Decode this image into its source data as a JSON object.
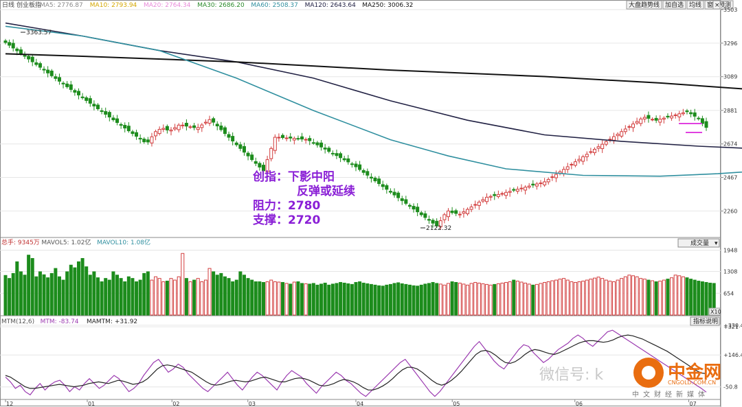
{
  "header": {
    "period": "日线",
    "index_name": "创业板指",
    "ma_labels": [
      {
        "text": "MA5: 2776.87",
        "color": "#888888"
      },
      {
        "text": "MA10: 2793.94",
        "color": "#d4a700"
      },
      {
        "text": "MA20: 2764.34",
        "color": "#e88ad8"
      },
      {
        "text": "MA30: 2686.20",
        "color": "#2a8a2a"
      },
      {
        "text": "MA60: 2508.37",
        "color": "#2f8f9f"
      },
      {
        "text": "MA120: 2643.64",
        "color": "#222244"
      },
      {
        "text": "MA250: 3006.32",
        "color": "#111111"
      }
    ]
  },
  "toolbar": {
    "buttons": [
      "大盘趋势线",
      "加自选",
      "均线",
      "窗",
      "预测"
    ]
  },
  "price_axis": {
    "ticks": [
      "3503",
      "3296",
      "3089",
      "2881",
      "2674",
      "2467",
      "2260"
    ]
  },
  "annotations": {
    "high": "3363.57",
    "low": "2122.32"
  },
  "overlay_text": {
    "line1": "创指：下影中阳",
    "line2": "反弹或延续",
    "line3": "阻力：2780",
    "line4": "支撑：2720"
  },
  "volume_panel": {
    "labels": [
      {
        "text": "总手: 9345万",
        "color": "#c03030"
      },
      {
        "text": "MAVOL5: 1.02亿",
        "color": "#555555"
      },
      {
        "text": "MAVOL10: 1.08亿",
        "color": "#2f8f9f"
      }
    ],
    "dropdown": "成交量",
    "ticks": [
      "1948",
      "1308",
      "654"
    ],
    "unit": "X10"
  },
  "mtm_panel": {
    "labels": [
      {
        "text": "MTM(12,6)",
        "color": "#555555"
      },
      {
        "text": "MTM: -83.74",
        "color": "#9b3ab0"
      },
      {
        "text": "MAMTM: +31.92",
        "color": "#222222"
      }
    ],
    "button": "指标说明",
    "ticks": [
      "+330.4",
      "+146.4",
      "+321",
      "-50.8"
    ]
  },
  "date_axis": {
    "ticks": [
      "12",
      "01",
      "02",
      "03",
      "04",
      "05",
      "06",
      "07"
    ]
  },
  "watermark": {
    "text": "微信号: k",
    "logo_text": "中金网",
    "logo_sub": "CNGOLD.COM.CN",
    "tagline": "中文财经新媒体",
    "tag": "CN"
  },
  "chart_data": [
    {
      "type": "candlestick",
      "title": "创业板指 日线",
      "ylim": [
        2122,
        3503
      ],
      "close": [
        3300,
        3283,
        3266,
        3249,
        3232,
        3215,
        3198,
        3181,
        3164,
        3147,
        3130,
        3112,
        3095,
        3078,
        3061,
        3044,
        3027,
        3010,
        2993,
        2976,
        2959,
        2942,
        2925,
        2908,
        2891,
        2874,
        2857,
        2840,
        2823,
        2806,
        2789,
        2772,
        2755,
        2738,
        2721,
        2704,
        2687,
        2686,
        2718,
        2750,
        2764,
        2770,
        2760,
        2760,
        2774,
        2790,
        2790,
        2784,
        2780,
        2775,
        2775,
        2791,
        2808,
        2824,
        2808,
        2785,
        2762,
        2738,
        2715,
        2692,
        2669,
        2646,
        2623,
        2600,
        2577,
        2554,
        2531,
        2508,
        2577,
        2646,
        2715,
        2715,
        2713,
        2711,
        2710,
        2708,
        2706,
        2704,
        2702,
        2694,
        2681,
        2668,
        2655,
        2642,
        2628,
        2615,
        2602,
        2589,
        2576,
        2563,
        2550,
        2533,
        2516,
        2498,
        2481,
        2463,
        2446,
        2429,
        2411,
        2394,
        2376,
        2359,
        2342,
        2324,
        2307,
        2289,
        2272,
        2255,
        2237,
        2220,
        2203,
        2185,
        2168,
        2200,
        2237,
        2260,
        2250,
        2245,
        2240,
        2255,
        2270,
        2285,
        2300,
        2315,
        2330,
        2345,
        2350,
        2355,
        2362,
        2368,
        2375,
        2381,
        2388,
        2394,
        2401,
        2407,
        2414,
        2420,
        2427,
        2433,
        2440,
        2455,
        2471,
        2486,
        2502,
        2517,
        2533,
        2548,
        2564,
        2579,
        2595,
        2610,
        2626,
        2641,
        2657,
        2672,
        2688,
        2703,
        2719,
        2734,
        2750,
        2766,
        2781,
        2797,
        2812,
        2828,
        2838,
        2832,
        2826,
        2820,
        2827,
        2833,
        2840,
        2846,
        2853,
        2860,
        2866,
        2873,
        2860,
        2845,
        2830,
        2800,
        2776
      ]
    },
    {
      "type": "line",
      "series": [
        {
          "name": "MA120",
          "color": "#222244",
          "x": [
            0,
            10,
            20,
            40,
            60,
            80,
            100,
            120,
            140,
            160,
            180,
            196
          ],
          "values": [
            3420,
            3380,
            3340,
            3250,
            3180,
            3080,
            2940,
            2820,
            2730,
            2690,
            2660,
            2643
          ]
        },
        {
          "name": "MA250",
          "color": "#111111",
          "x": [
            0,
            20,
            60,
            100,
            140,
            170,
            196
          ],
          "values": [
            3230,
            3215,
            3180,
            3130,
            3090,
            3050,
            3006
          ]
        },
        {
          "name": "MA60",
          "color": "#2f8f9f",
          "x": [
            0,
            20,
            40,
            60,
            80,
            100,
            115,
            130,
            150,
            170,
            185,
            196
          ],
          "values": [
            3400,
            3340,
            3250,
            3080,
            2880,
            2700,
            2600,
            2520,
            2480,
            2475,
            2490,
            2508
          ]
        }
      ]
    },
    {
      "type": "bar",
      "title": "成交量",
      "ylim": [
        0,
        2000
      ],
      "values": [
        1190,
        1100,
        1250,
        1600,
        1300,
        1200,
        1800,
        1700,
        1150,
        1300,
        1210,
        1120,
        1250,
        1400,
        1150,
        1050,
        1300,
        1500,
        1420,
        1600,
        1700,
        1450,
        1200,
        1300,
        1120,
        1000,
        1100,
        1050,
        1300,
        1200,
        1100,
        1000,
        1150,
        1100,
        1000,
        1050,
        1250,
        1300,
        1050,
        1150,
        1100,
        1000,
        1020,
        1100,
        1050,
        1150,
        1850,
        1100,
        1000,
        1050,
        1100,
        1000,
        1050,
        1400,
        1300,
        1200,
        1250,
        1150,
        1100,
        1000,
        1050,
        1300,
        1200,
        1100,
        1050,
        1000,
        1000,
        980,
        1000,
        1050,
        1000,
        990,
        980,
        950,
        930,
        990,
        1000,
        950,
        940,
        930,
        950,
        900,
        930,
        960,
        900,
        930,
        950,
        980,
        960,
        940,
        920,
        980,
        1000,
        960,
        940,
        920,
        900,
        880,
        870,
        900,
        920,
        950,
        970,
        940,
        920,
        900,
        880,
        870,
        900,
        930,
        950,
        980,
        950,
        930,
        900,
        950,
        1000,
        980,
        960,
        930,
        900,
        950,
        980,
        960,
        940,
        920,
        900,
        920,
        940,
        960,
        980,
        1000,
        1050,
        1020,
        990,
        960,
        930,
        900,
        920,
        950,
        980,
        1000,
        1030,
        1050,
        1080,
        1100,
        1050,
        1000,
        980,
        1000,
        1020,
        1050,
        1080,
        1110,
        1140,
        1100,
        1050,
        1020,
        1000,
        1050,
        1100,
        1150,
        1200,
        1180,
        1150,
        1100,
        1080,
        1050,
        1030,
        1000,
        1020,
        1050,
        1080,
        1120,
        1200,
        1180,
        1150,
        1120,
        1080,
        1050,
        1020,
        1000,
        980,
        960,
        950
      ]
    },
    {
      "type": "line",
      "title": "MTM(12,6)",
      "ylim": [
        -120,
        330
      ],
      "series": [
        {
          "name": "MTM",
          "color": "#9b3ab0",
          "values": [
            10,
            -20,
            -60,
            -40,
            -80,
            -100,
            -60,
            -30,
            -70,
            -40,
            -20,
            -10,
            -40,
            -80,
            -50,
            -70,
            -30,
            0,
            -30,
            -60,
            -40,
            -10,
            20,
            0,
            -40,
            -80,
            -60,
            -30,
            20,
            60,
            100,
            120,
            80,
            40,
            60,
            90,
            70,
            30,
            0,
            -30,
            -60,
            -80,
            -50,
            -20,
            10,
            40,
            0,
            -40,
            -70,
            -30,
            10,
            40,
            20,
            -10,
            -40,
            -70,
            -20,
            20,
            50,
            30,
            10,
            -30,
            -60,
            -90,
            -50,
            -20,
            10,
            40,
            20,
            -10,
            -30,
            -60,
            -90,
            -110,
            -80,
            -50,
            -20,
            10,
            40,
            70,
            100,
            120,
            80,
            40,
            0,
            -40,
            -80,
            -110,
            -80,
            -40,
            0,
            40,
            80,
            120,
            160,
            200,
            230,
            190,
            150,
            110,
            80,
            60,
            100,
            140,
            180,
            210,
            200,
            160,
            130,
            100,
            120,
            150,
            180,
            200,
            220,
            250,
            270,
            250,
            220,
            200,
            230,
            260,
            290,
            300,
            280,
            260,
            240,
            220,
            200,
            180,
            160,
            140,
            120,
            100,
            80,
            60,
            40,
            20,
            0,
            -20,
            -40,
            -60,
            -83
          ]
        },
        {
          "name": "MAMTM",
          "color": "#222222",
          "values": [
            20,
            10,
            -10,
            -30,
            -50,
            -60,
            -60,
            -55,
            -50,
            -45,
            -40,
            -35,
            -40,
            -45,
            -50,
            -45,
            -40,
            -30,
            -25,
            -20,
            -25,
            -30,
            -20,
            -10,
            -15,
            -25,
            -35,
            -30,
            -20,
            0,
            30,
            60,
            80,
            85,
            80,
            70,
            60,
            50,
            40,
            20,
            0,
            -20,
            -35,
            -40,
            -35,
            -25,
            -15,
            -10,
            -15,
            -20,
            -15,
            -5,
            5,
            10,
            0,
            -10,
            -20,
            -20,
            -10,
            0,
            5,
            0,
            -10,
            -25,
            -40,
            -45,
            -40,
            -30,
            -15,
            -5,
            -10,
            -20,
            -35,
            -55,
            -70,
            -70,
            -60,
            -45,
            -25,
            0,
            30,
            55,
            70,
            70,
            60,
            40,
            15,
            -10,
            -30,
            -40,
            -30,
            -10,
            15,
            45,
            80,
            115,
            150,
            170,
            175,
            165,
            145,
            120,
            100,
            95,
            105,
            125,
            150,
            170,
            180,
            175,
            165,
            155,
            150,
            160,
            175,
            190,
            205,
            220,
            230,
            235,
            235,
            230,
            225,
            230,
            240,
            255,
            265,
            270,
            265,
            255,
            245,
            230,
            215,
            200,
            185,
            170,
            150,
            130,
            110,
            90,
            70,
            50,
            35,
            31
          ]
        }
      ]
    }
  ]
}
